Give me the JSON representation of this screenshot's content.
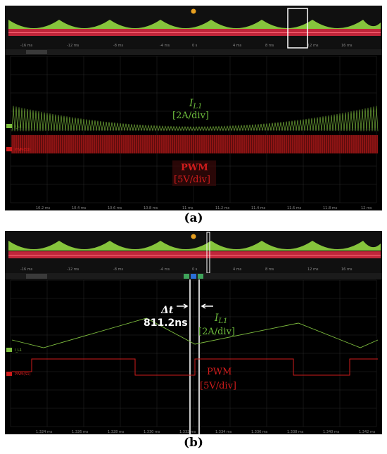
{
  "panel_a": {
    "caption": "(a)",
    "overview_ticks": [
      "-16 ms",
      "-12 ms",
      "-8 ms",
      "-4 ms",
      "0 s",
      "4 ms",
      "8 ms",
      "12 ms",
      "16 ms"
    ],
    "time_ticks": [
      "10.2 ms",
      "10.4 ms",
      "10.6 ms",
      "10.8 ms",
      "11 ms",
      "11.2 ms",
      "11.4 ms",
      "11.6 ms",
      "11.8 ms",
      "12 ms"
    ],
    "current_label": "I",
    "current_subscript": "L1",
    "current_scale": "[2A/div]",
    "pwm_label": "PWM",
    "pwm_scale": "[5V/div]",
    "ch1_marker": "I_L1",
    "ch3_marker": "PWM(S1)"
  },
  "panel_b": {
    "caption": "(b)",
    "overview_ticks": [
      "-16 ms",
      "-12 ms",
      "-8 ms",
      "-4 ms",
      "0 s",
      "4 ms",
      "8 ms",
      "12 ms",
      "16 ms"
    ],
    "time_ticks": [
      "1.324 ms",
      "1.326 ms",
      "1.328 ms",
      "1.330 ms",
      "1.332 ms",
      "1.334 ms",
      "1.336 ms",
      "1.338 ms",
      "1.340 ms",
      "1.342 ms"
    ],
    "delta_label": "Δt",
    "delta_value": "811.2ns",
    "current_label": "I",
    "current_subscript": "L1",
    "current_scale": "[2A/div]",
    "pwm_label": "PWM",
    "pwm_scale": "[5V/div]",
    "ch1_marker": "I_L1",
    "ch3_marker": "PWM(S1)"
  },
  "colors": {
    "current_trace": "#7fbf3f",
    "pwm_trace": "#d01c1c",
    "grid": "#2b2b2b"
  }
}
